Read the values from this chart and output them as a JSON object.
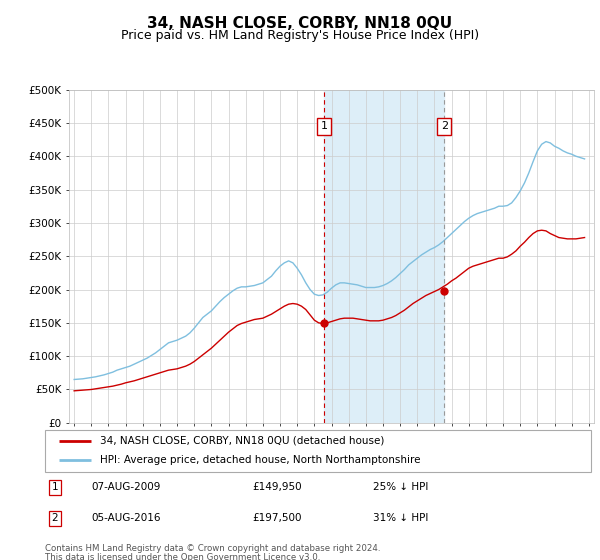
{
  "title": "34, NASH CLOSE, CORBY, NN18 0QU",
  "subtitle": "Price paid vs. HM Land Registry's House Price Index (HPI)",
  "title_fontsize": 11,
  "subtitle_fontsize": 9,
  "ylabel_ticks": [
    "£0",
    "£50K",
    "£100K",
    "£150K",
    "£200K",
    "£250K",
    "£300K",
    "£350K",
    "£400K",
    "£450K",
    "£500K"
  ],
  "ytick_vals": [
    0,
    50000,
    100000,
    150000,
    200000,
    250000,
    300000,
    350000,
    400000,
    450000,
    500000
  ],
  "ylim": [
    0,
    500000
  ],
  "xlim_start": 1994.7,
  "xlim_end": 2025.3,
  "hpi_color": "#7fbfdf",
  "price_color": "#cc0000",
  "vline1_color": "#cc0000",
  "vline2_color": "#999999",
  "annotation_border": "#cc0000",
  "sale1_year": 2009.58,
  "sale1_price": 149950,
  "sale1_label": "1",
  "sale1_date": "07-AUG-2009",
  "sale1_display": "£149,950",
  "sale1_hpi_pct": "25% ↓ HPI",
  "sale2_year": 2016.58,
  "sale2_price": 197500,
  "sale2_label": "2",
  "sale2_date": "05-AUG-2016",
  "sale2_display": "£197,500",
  "sale2_hpi_pct": "31% ↓ HPI",
  "legend_line1": "34, NASH CLOSE, CORBY, NN18 0QU (detached house)",
  "legend_line2": "HPI: Average price, detached house, North Northamptonshire",
  "footer1": "Contains HM Land Registry data © Crown copyright and database right 2024.",
  "footer2": "This data is licensed under the Open Government Licence v3.0.",
  "bg_highlight_color": "#ddeef8",
  "hpi_years": [
    1995.0,
    1995.25,
    1995.5,
    1995.75,
    1996.0,
    1996.25,
    1996.5,
    1996.75,
    1997.0,
    1997.25,
    1997.5,
    1997.75,
    1998.0,
    1998.25,
    1998.5,
    1998.75,
    1999.0,
    1999.25,
    1999.5,
    1999.75,
    2000.0,
    2000.25,
    2000.5,
    2000.75,
    2001.0,
    2001.25,
    2001.5,
    2001.75,
    2002.0,
    2002.25,
    2002.5,
    2002.75,
    2003.0,
    2003.25,
    2003.5,
    2003.75,
    2004.0,
    2004.25,
    2004.5,
    2004.75,
    2005.0,
    2005.25,
    2005.5,
    2005.75,
    2006.0,
    2006.25,
    2006.5,
    2006.75,
    2007.0,
    2007.25,
    2007.5,
    2007.75,
    2008.0,
    2008.25,
    2008.5,
    2008.75,
    2009.0,
    2009.25,
    2009.5,
    2009.75,
    2010.0,
    2010.25,
    2010.5,
    2010.75,
    2011.0,
    2011.25,
    2011.5,
    2011.75,
    2012.0,
    2012.25,
    2012.5,
    2012.75,
    2013.0,
    2013.25,
    2013.5,
    2013.75,
    2014.0,
    2014.25,
    2014.5,
    2014.75,
    2015.0,
    2015.25,
    2015.5,
    2015.75,
    2016.0,
    2016.25,
    2016.5,
    2016.75,
    2017.0,
    2017.25,
    2017.5,
    2017.75,
    2018.0,
    2018.25,
    2018.5,
    2018.75,
    2019.0,
    2019.25,
    2019.5,
    2019.75,
    2020.0,
    2020.25,
    2020.5,
    2020.75,
    2021.0,
    2021.25,
    2021.5,
    2021.75,
    2022.0,
    2022.25,
    2022.5,
    2022.75,
    2023.0,
    2023.25,
    2023.5,
    2023.75,
    2024.0,
    2024.25,
    2024.5,
    2024.75
  ],
  "hpi_values": [
    65000,
    65500,
    66000,
    67000,
    68000,
    69000,
    70500,
    72000,
    74000,
    76000,
    79000,
    81000,
    83000,
    85000,
    88000,
    91000,
    94000,
    97000,
    101000,
    105000,
    110000,
    115000,
    120000,
    122000,
    124000,
    127000,
    130000,
    135000,
    142000,
    150000,
    158000,
    163000,
    168000,
    175000,
    182000,
    188000,
    193000,
    198000,
    202000,
    204000,
    204000,
    205000,
    206000,
    208000,
    210000,
    215000,
    220000,
    228000,
    235000,
    240000,
    243000,
    240000,
    232000,
    222000,
    210000,
    200000,
    193000,
    191000,
    192000,
    196000,
    202000,
    207000,
    210000,
    210000,
    209000,
    208000,
    207000,
    205000,
    203000,
    203000,
    203000,
    204000,
    206000,
    209000,
    213000,
    218000,
    224000,
    230000,
    237000,
    242000,
    247000,
    252000,
    256000,
    260000,
    263000,
    267000,
    272000,
    278000,
    284000,
    290000,
    296000,
    302000,
    307000,
    311000,
    314000,
    316000,
    318000,
    320000,
    322000,
    325000,
    325000,
    326000,
    330000,
    338000,
    348000,
    360000,
    375000,
    392000,
    408000,
    418000,
    422000,
    420000,
    415000,
    412000,
    408000,
    405000,
    403000,
    400000,
    398000,
    396000
  ],
  "price_years": [
    1995.0,
    1995.25,
    1995.5,
    1995.75,
    1996.0,
    1996.25,
    1996.5,
    1996.75,
    1997.0,
    1997.25,
    1997.5,
    1997.75,
    1998.0,
    1998.25,
    1998.5,
    1998.75,
    1999.0,
    1999.25,
    1999.5,
    1999.75,
    2000.0,
    2000.25,
    2000.5,
    2000.75,
    2001.0,
    2001.25,
    2001.5,
    2001.75,
    2002.0,
    2002.25,
    2002.5,
    2002.75,
    2003.0,
    2003.25,
    2003.5,
    2003.75,
    2004.0,
    2004.25,
    2004.5,
    2004.75,
    2005.0,
    2005.25,
    2005.5,
    2005.75,
    2006.0,
    2006.25,
    2006.5,
    2006.75,
    2007.0,
    2007.25,
    2007.5,
    2007.75,
    2008.0,
    2008.25,
    2008.5,
    2008.75,
    2009.0,
    2009.25,
    2009.5,
    2009.75,
    2010.0,
    2010.25,
    2010.5,
    2010.75,
    2011.0,
    2011.25,
    2011.5,
    2011.75,
    2012.0,
    2012.25,
    2012.5,
    2012.75,
    2013.0,
    2013.25,
    2013.5,
    2013.75,
    2014.0,
    2014.25,
    2014.5,
    2014.75,
    2015.0,
    2015.25,
    2015.5,
    2015.75,
    2016.0,
    2016.25,
    2016.5,
    2016.75,
    2017.0,
    2017.25,
    2017.5,
    2017.75,
    2018.0,
    2018.25,
    2018.5,
    2018.75,
    2019.0,
    2019.25,
    2019.5,
    2019.75,
    2020.0,
    2020.25,
    2020.5,
    2020.75,
    2021.0,
    2021.25,
    2021.5,
    2021.75,
    2022.0,
    2022.25,
    2022.5,
    2022.75,
    2023.0,
    2023.25,
    2023.5,
    2023.75,
    2024.0,
    2024.25,
    2024.5,
    2024.75
  ],
  "price_values": [
    48000,
    48500,
    49000,
    49500,
    50000,
    51000,
    52000,
    53000,
    54000,
    55000,
    56500,
    58000,
    60000,
    61500,
    63000,
    65000,
    67000,
    69000,
    71000,
    73000,
    75000,
    77000,
    79000,
    80000,
    81000,
    83000,
    85000,
    88000,
    92000,
    97000,
    102000,
    107000,
    112000,
    118000,
    124000,
    130000,
    136000,
    141000,
    146000,
    149000,
    151000,
    153000,
    155000,
    156000,
    157000,
    160000,
    163000,
    167000,
    171000,
    175000,
    178000,
    179000,
    178000,
    175000,
    170000,
    162000,
    154000,
    150000,
    149000,
    150000,
    152000,
    154000,
    156000,
    157000,
    157000,
    157000,
    156000,
    155000,
    154000,
    153000,
    153000,
    153000,
    154000,
    156000,
    158000,
    161000,
    165000,
    169000,
    174000,
    179000,
    183000,
    187000,
    191000,
    194000,
    197000,
    200000,
    204000,
    208000,
    213000,
    217000,
    222000,
    227000,
    232000,
    235000,
    237000,
    239000,
    241000,
    243000,
    245000,
    247000,
    247000,
    249000,
    253000,
    258000,
    265000,
    271000,
    278000,
    284000,
    288000,
    289000,
    288000,
    284000,
    281000,
    278000,
    277000,
    276000,
    276000,
    276000,
    277000,
    278000
  ]
}
